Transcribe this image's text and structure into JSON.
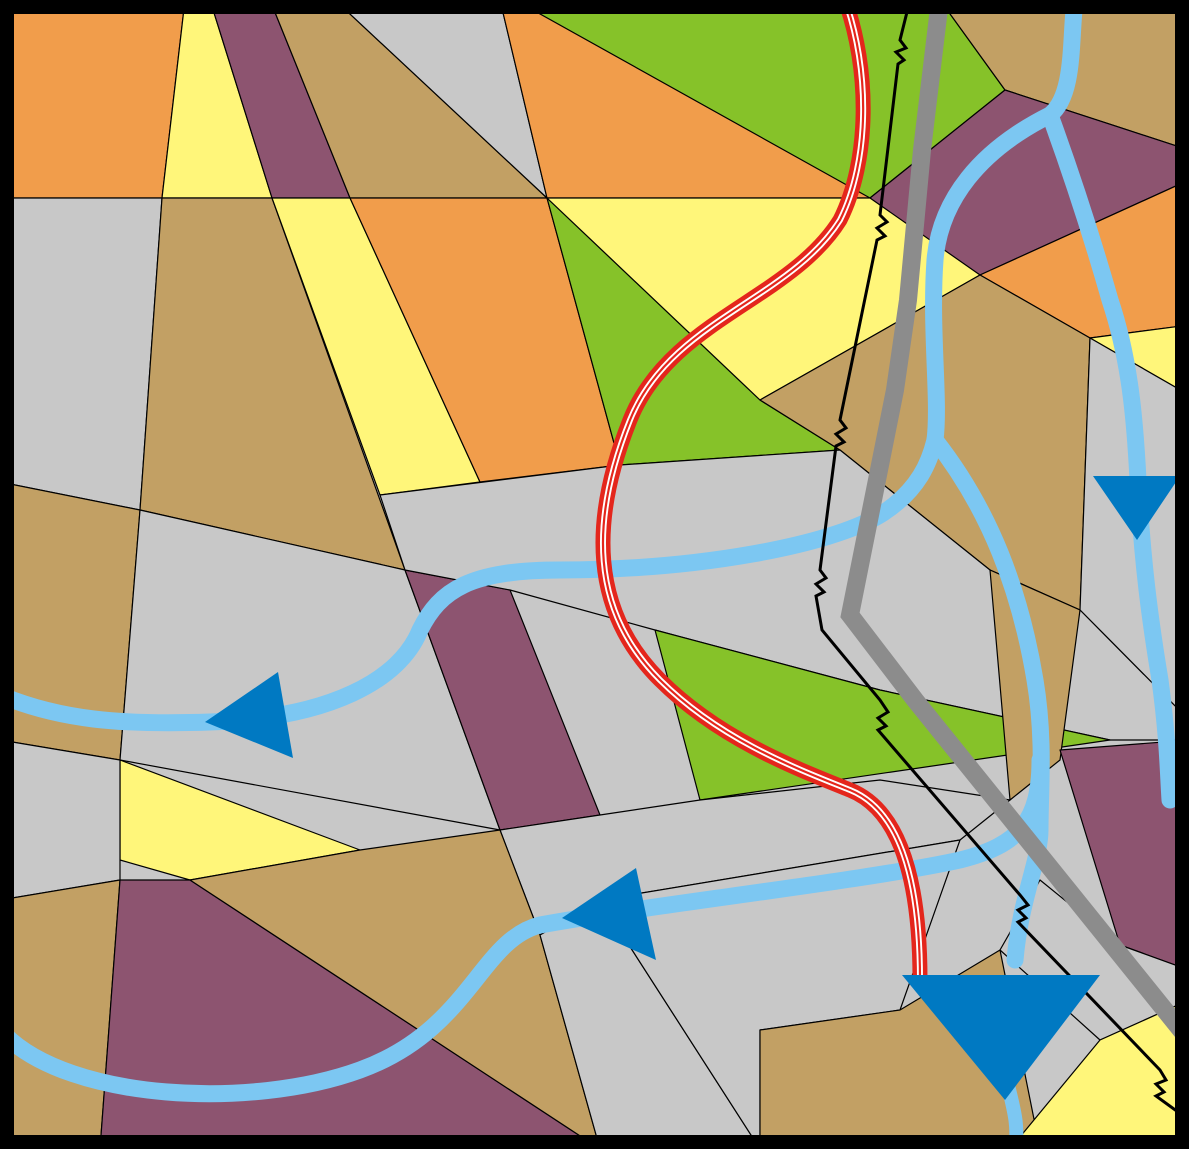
{
  "map": {
    "palette": {
      "orange": "#f19d4b",
      "yellow": "#fff67a",
      "purple": "#8d5470",
      "tan": "#c2a064",
      "gray": "#c8c8c8",
      "green": "#86c229",
      "river": "#7cc7f2",
      "arrow": "#0079c2",
      "pipeline": "#e4261c",
      "road": "#8c8c8c",
      "fault": "#000000"
    },
    "legend": [],
    "layers": [
      {
        "name": "land-parcels",
        "color_key": "mixed"
      },
      {
        "name": "rivers",
        "color_key": "river"
      },
      {
        "name": "flow-arrows",
        "color_key": "arrow"
      },
      {
        "name": "pipeline",
        "color_key": "pipeline"
      },
      {
        "name": "road",
        "color_key": "road"
      },
      {
        "name": "fault-line",
        "color_key": "fault"
      }
    ],
    "flow_arrows": [
      {
        "id": "arrow-west-upper",
        "direction": "west"
      },
      {
        "id": "arrow-west-lower",
        "direction": "west"
      },
      {
        "id": "arrow-south-right",
        "direction": "south"
      },
      {
        "id": "arrow-south-large",
        "direction": "south"
      }
    ]
  }
}
